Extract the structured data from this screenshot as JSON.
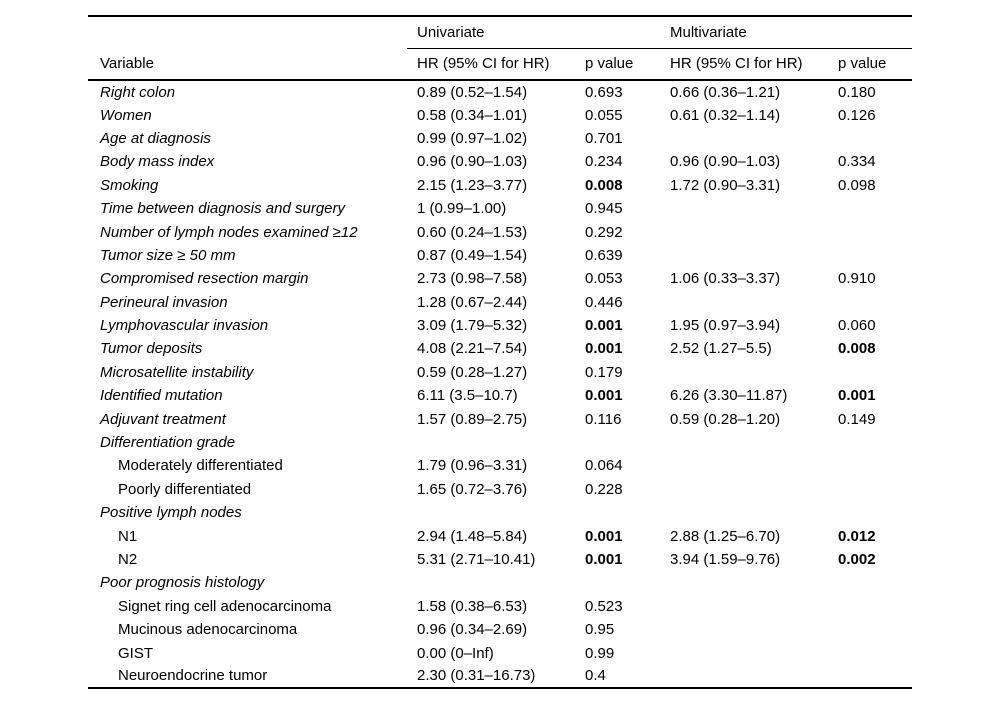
{
  "table": {
    "header": {
      "group_univariate": "Univariate",
      "group_multivariate": "Multivariate",
      "col_variable": "Variable",
      "col_hr_univariate": "HR (95% CI for HR)",
      "col_p_univariate": "p value",
      "col_hr_multivariate": "HR (95% CI for HR)",
      "col_p_multivariate": "p value"
    },
    "rows": [
      {
        "variable": "Right colon",
        "italic": true,
        "indent": false,
        "uni_hr": "0.89 (0.52–1.54)",
        "uni_p": "0.693",
        "uni_p_bold": false,
        "multi_hr": "0.66 (0.36–1.21)",
        "multi_p": "0.180",
        "multi_p_bold": false
      },
      {
        "variable": "Women",
        "italic": true,
        "indent": false,
        "uni_hr": "0.58 (0.34–1.01)",
        "uni_p": "0.055",
        "uni_p_bold": false,
        "multi_hr": "0.61 (0.32–1.14)",
        "multi_p": "0.126",
        "multi_p_bold": false
      },
      {
        "variable": "Age at diagnosis",
        "italic": true,
        "indent": false,
        "uni_hr": "0.99 (0.97–1.02)",
        "uni_p": "0.701",
        "uni_p_bold": false,
        "multi_hr": "",
        "multi_p": "",
        "multi_p_bold": false
      },
      {
        "variable": "Body mass index",
        "italic": true,
        "indent": false,
        "uni_hr": "0.96 (0.90–1.03)",
        "uni_p": "0.234",
        "uni_p_bold": false,
        "multi_hr": "0.96 (0.90–1.03)",
        "multi_p": "0.334",
        "multi_p_bold": false
      },
      {
        "variable": "Smoking",
        "italic": true,
        "indent": false,
        "uni_hr": "2.15 (1.23–3.77)",
        "uni_p": "0.008",
        "uni_p_bold": true,
        "multi_hr": "1.72 (0.90–3.31)",
        "multi_p": "0.098",
        "multi_p_bold": false
      },
      {
        "variable": "Time between diagnosis and surgery",
        "italic": true,
        "indent": false,
        "uni_hr": "1 (0.99–1.00)",
        "uni_p": "0.945",
        "uni_p_bold": false,
        "multi_hr": "",
        "multi_p": "",
        "multi_p_bold": false
      },
      {
        "variable": "Number of lymph nodes examined ≥12",
        "italic": true,
        "indent": false,
        "uni_hr": "0.60 (0.24–1.53)",
        "uni_p": "0.292",
        "uni_p_bold": false,
        "multi_hr": "",
        "multi_p": "",
        "multi_p_bold": false
      },
      {
        "variable": "Tumor size ≥ 50 mm",
        "italic": true,
        "indent": false,
        "uni_hr": "0.87 (0.49–1.54)",
        "uni_p": "0.639",
        "uni_p_bold": false,
        "multi_hr": "",
        "multi_p": "",
        "multi_p_bold": false
      },
      {
        "variable": "Compromised resection margin",
        "italic": true,
        "indent": false,
        "uni_hr": "2.73 (0.98–7.58)",
        "uni_p": "0.053",
        "uni_p_bold": false,
        "multi_hr": "1.06 (0.33–3.37)",
        "multi_p": "0.910",
        "multi_p_bold": false
      },
      {
        "variable": "Perineural invasion",
        "italic": true,
        "indent": false,
        "uni_hr": "1.28 (0.67–2.44)",
        "uni_p": "0.446",
        "uni_p_bold": false,
        "multi_hr": "",
        "multi_p": "",
        "multi_p_bold": false
      },
      {
        "variable": "Lymphovascular invasion",
        "italic": true,
        "indent": false,
        "uni_hr": "3.09 (1.79–5.32)",
        "uni_p": "0.001",
        "uni_p_bold": true,
        "multi_hr": "1.95 (0.97–3.94)",
        "multi_p": "0.060",
        "multi_p_bold": false
      },
      {
        "variable": "Tumor deposits",
        "italic": true,
        "indent": false,
        "uni_hr": "4.08 (2.21–7.54)",
        "uni_p": "0.001",
        "uni_p_bold": true,
        "multi_hr": "2.52 (1.27–5.5)",
        "multi_p": "0.008",
        "multi_p_bold": true
      },
      {
        "variable": "Microsatellite instability",
        "italic": true,
        "indent": false,
        "uni_hr": "0.59 (0.28–1.27)",
        "uni_p": "0.179",
        "uni_p_bold": false,
        "multi_hr": "",
        "multi_p": "",
        "multi_p_bold": false
      },
      {
        "variable": "Identified mutation",
        "italic": true,
        "indent": false,
        "uni_hr": "6.11 (3.5–10.7)",
        "uni_p": "0.001",
        "uni_p_bold": true,
        "multi_hr": "6.26 (3.30–11.87)",
        "multi_p": "0.001",
        "multi_p_bold": true
      },
      {
        "variable": "Adjuvant treatment",
        "italic": true,
        "indent": false,
        "uni_hr": "1.57 (0.89–2.75)",
        "uni_p": "0.116",
        "uni_p_bold": false,
        "multi_hr": "0.59 (0.28–1.20)",
        "multi_p": "0.149",
        "multi_p_bold": false
      },
      {
        "variable": "Differentiation grade",
        "italic": true,
        "indent": false,
        "uni_hr": "",
        "uni_p": "",
        "uni_p_bold": false,
        "multi_hr": "",
        "multi_p": "",
        "multi_p_bold": false
      },
      {
        "variable": "Moderately differentiated",
        "italic": false,
        "indent": true,
        "uni_hr": "1.79 (0.96–3.31)",
        "uni_p": "0.064",
        "uni_p_bold": false,
        "multi_hr": "",
        "multi_p": "",
        "multi_p_bold": false
      },
      {
        "variable": "Poorly differentiated",
        "italic": false,
        "indent": true,
        "uni_hr": "1.65 (0.72–3.76)",
        "uni_p": "0.228",
        "uni_p_bold": false,
        "multi_hr": "",
        "multi_p": "",
        "multi_p_bold": false
      },
      {
        "variable": "Positive lymph nodes",
        "italic": true,
        "indent": false,
        "uni_hr": "",
        "uni_p": "",
        "uni_p_bold": false,
        "multi_hr": "",
        "multi_p": "",
        "multi_p_bold": false
      },
      {
        "variable": "N1",
        "italic": false,
        "indent": true,
        "uni_hr": "2.94 (1.48–5.84)",
        "uni_p": "0.001",
        "uni_p_bold": true,
        "multi_hr": "2.88 (1.25–6.70)",
        "multi_p": "0.012",
        "multi_p_bold": true
      },
      {
        "variable": "N2",
        "italic": false,
        "indent": true,
        "uni_hr": "5.31 (2.71–10.41)",
        "uni_p": "0.001",
        "uni_p_bold": true,
        "multi_hr": "3.94 (1.59–9.76)",
        "multi_p": "0.002",
        "multi_p_bold": true
      },
      {
        "variable": "Poor prognosis histology",
        "italic": true,
        "indent": false,
        "uni_hr": "",
        "uni_p": "",
        "uni_p_bold": false,
        "multi_hr": "",
        "multi_p": "",
        "multi_p_bold": false
      },
      {
        "variable": "Signet ring cell adenocarcinoma",
        "italic": false,
        "indent": true,
        "uni_hr": "1.58 (0.38–6.53)",
        "uni_p": "0.523",
        "uni_p_bold": false,
        "multi_hr": "",
        "multi_p": "",
        "multi_p_bold": false
      },
      {
        "variable": "Mucinous adenocarcinoma",
        "italic": false,
        "indent": true,
        "uni_hr": "0.96 (0.34–2.69)",
        "uni_p": "0.95",
        "uni_p_bold": false,
        "multi_hr": "",
        "multi_p": "",
        "multi_p_bold": false
      },
      {
        "variable": "GIST",
        "italic": false,
        "indent": true,
        "uni_hr": "0.00 (0–Inf)",
        "uni_p": "0.99",
        "uni_p_bold": false,
        "multi_hr": "",
        "multi_p": "",
        "multi_p_bold": false
      },
      {
        "variable": "Neuroendocrine tumor",
        "italic": false,
        "indent": true,
        "uni_hr": "2.30 (0.31–16.73)",
        "uni_p": "0.4",
        "uni_p_bold": false,
        "multi_hr": "",
        "multi_p": "",
        "multi_p_bold": false
      }
    ]
  },
  "colors": {
    "text": "#000000",
    "background": "#ffffff",
    "rule": "#000000"
  }
}
